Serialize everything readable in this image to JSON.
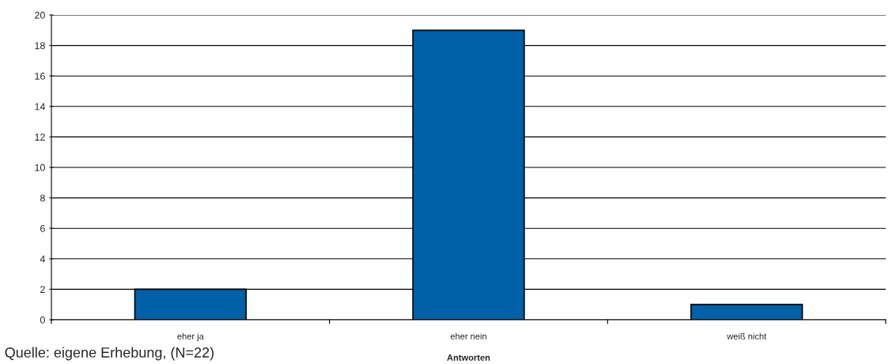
{
  "chart_data": {
    "type": "bar",
    "xlabel": "Antworten",
    "categories": [
      "eher ja",
      "eher nein",
      "weiß nicht"
    ],
    "values": [
      2,
      19,
      1
    ],
    "color": "#0060a8",
    "ylim": [
      0,
      20
    ],
    "yticks": [
      0,
      2,
      4,
      6,
      8,
      10,
      12,
      14,
      16,
      18,
      20
    ],
    "grid": "y",
    "annotations": [
      "Quelle: eigene Erhebung, (N=22)"
    ]
  }
}
